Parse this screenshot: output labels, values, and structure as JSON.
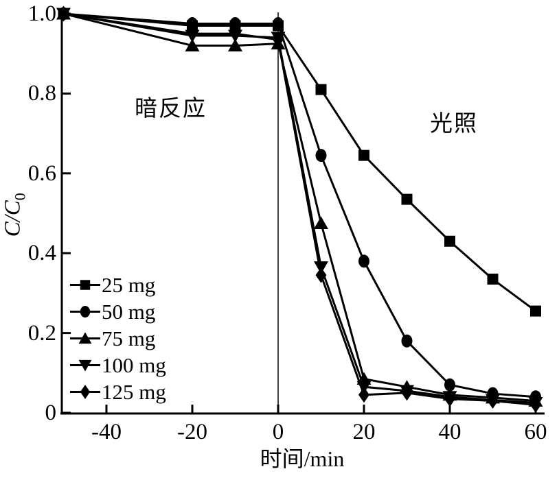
{
  "chart_data": {
    "type": "line",
    "title": "",
    "xlabel": "时间/min",
    "ylabel": "C/C0",
    "ylabel_main": "C/C",
    "ylabel_sub": "0",
    "xlim": [
      -52,
      62
    ],
    "ylim": [
      0,
      1.0
    ],
    "x_ticks": [
      "-40",
      "-20",
      "0",
      "20",
      "40",
      "60"
    ],
    "x_tick_values": [
      -40,
      -20,
      0,
      20,
      40,
      60
    ],
    "y_ticks": [
      "1.0",
      "0.8",
      "0.6",
      "0.4",
      "0.2",
      "0"
    ],
    "y_tick_values": [
      1.0,
      0.8,
      0.6,
      0.4,
      0.2,
      0
    ],
    "grid": false,
    "legend_position": "lower-left",
    "divider_x": 0,
    "annotations": [
      {
        "text": "暗反应",
        "meaning": "dark reaction",
        "x": -24,
        "y": 0.76
      },
      {
        "text": "光照",
        "meaning": "light illumination",
        "x": 41,
        "y": 0.72
      }
    ],
    "line_color": "#000000",
    "background_color": "#ffffff",
    "x": [
      -50,
      -20,
      -10,
      0,
      10,
      20,
      30,
      40,
      50,
      60
    ],
    "series": [
      {
        "name": "25 mg",
        "marker": "square",
        "values": [
          1.0,
          0.97,
          0.97,
          0.97,
          0.81,
          0.645,
          0.535,
          0.43,
          0.335,
          0.255
        ]
      },
      {
        "name": "50 mg",
        "marker": "circle",
        "values": [
          1.0,
          0.975,
          0.975,
          0.975,
          0.645,
          0.38,
          0.18,
          0.07,
          0.048,
          0.04
        ]
      },
      {
        "name": "75 mg",
        "marker": "triangle-up",
        "values": [
          1.0,
          0.92,
          0.92,
          0.925,
          0.475,
          0.085,
          0.065,
          0.045,
          0.038,
          0.03
        ]
      },
      {
        "name": "100 mg",
        "marker": "triangle-down",
        "values": [
          1.0,
          0.945,
          0.945,
          0.94,
          0.365,
          0.065,
          0.055,
          0.04,
          0.032,
          0.025
        ]
      },
      {
        "name": "125 mg",
        "marker": "diamond",
        "values": [
          1.0,
          0.95,
          0.95,
          0.935,
          0.345,
          0.045,
          0.05,
          0.035,
          0.03,
          0.02
        ]
      }
    ]
  }
}
